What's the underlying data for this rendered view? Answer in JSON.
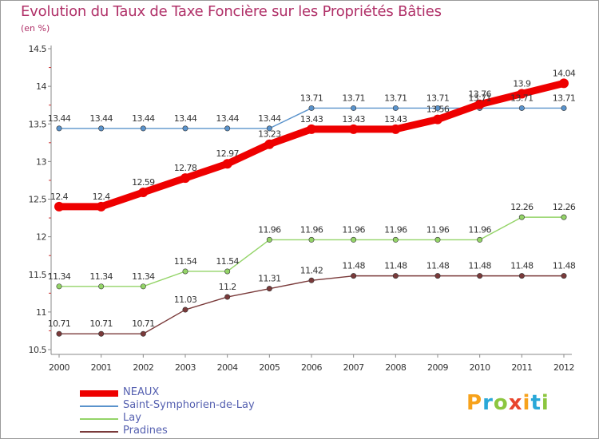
{
  "title": "Evolution du Taux de Taxe Foncière sur les Propriétés Bâties",
  "unit_label": "(en %)",
  "logo": {
    "letters": [
      "P",
      "r",
      "o",
      "x",
      "i",
      "t",
      "i"
    ],
    "colors": [
      "#f7a21b",
      "#2aa8d8",
      "#8cc63f",
      "#e8452c",
      "#f7a21b",
      "#2aa8d8",
      "#8cc63f"
    ]
  },
  "chart_data": {
    "type": "line",
    "x": [
      "2000",
      "2001",
      "2002",
      "2003",
      "2004",
      "2005",
      "2006",
      "2007",
      "2008",
      "2009",
      "2010",
      "2011",
      "2012"
    ],
    "ylim": [
      10.5,
      14.5
    ],
    "yticks": [
      "10.5",
      "11",
      "11.5",
      "12",
      "12.5",
      "13",
      "13.5",
      "14",
      "14.5"
    ],
    "grid": false,
    "legend_position": "bottom-left",
    "series": [
      {
        "name": "Saint-Symphorien-de-Lay",
        "color": "#5a93cc",
        "values": [
          13.44,
          13.44,
          13.44,
          13.44,
          13.44,
          13.44,
          13.71,
          13.71,
          13.71,
          13.71,
          13.71,
          13.71,
          13.71
        ],
        "labels": [
          "13.44",
          "13.44",
          "13.44",
          "13.44",
          "13.44",
          "13.44",
          "13.71",
          "13.71",
          "13.71",
          "13.71",
          "13.71",
          "13.71",
          "13.71"
        ]
      },
      {
        "name": "Lay",
        "color": "#94d468",
        "values": [
          11.34,
          11.34,
          11.34,
          11.54,
          11.54,
          11.96,
          11.96,
          11.96,
          11.96,
          11.96,
          11.96,
          12.26,
          12.26
        ],
        "labels": [
          "11.34",
          "11.34",
          "11.34",
          "11.54",
          "11.54",
          "11.96",
          "11.96",
          "11.96",
          "11.96",
          "11.96",
          "11.96",
          "12.26",
          "12.26"
        ]
      },
      {
        "name": "Pradines",
        "color": "#7a3a3a",
        "values": [
          10.71,
          10.71,
          10.71,
          11.03,
          11.2,
          11.31,
          11.42,
          11.48,
          11.48,
          11.48,
          11.48,
          11.48,
          11.48
        ],
        "labels": [
          "10.71",
          "10.71",
          "10.71",
          "11.03",
          "11.2",
          "11.31",
          "11.42",
          "11.48",
          "11.48",
          "11.48",
          "11.48",
          "11.48",
          "11.48"
        ]
      },
      {
        "name": "NEAUX",
        "color": "#ee0000",
        "values": [
          12.4,
          12.4,
          12.59,
          12.78,
          12.97,
          13.23,
          13.43,
          13.43,
          13.43,
          13.56,
          13.76,
          13.9,
          14.04
        ],
        "labels": [
          "12.4",
          "12.4",
          "12.59",
          "12.78",
          "12.97",
          "13.23",
          "13.43",
          "13.43",
          "13.43",
          "13.56",
          "13.76",
          "13.9",
          "14.04"
        ]
      }
    ],
    "legend_order": [
      "NEAUX",
      "Saint-Symphorien-de-Lay",
      "Lay",
      "Pradines"
    ]
  }
}
